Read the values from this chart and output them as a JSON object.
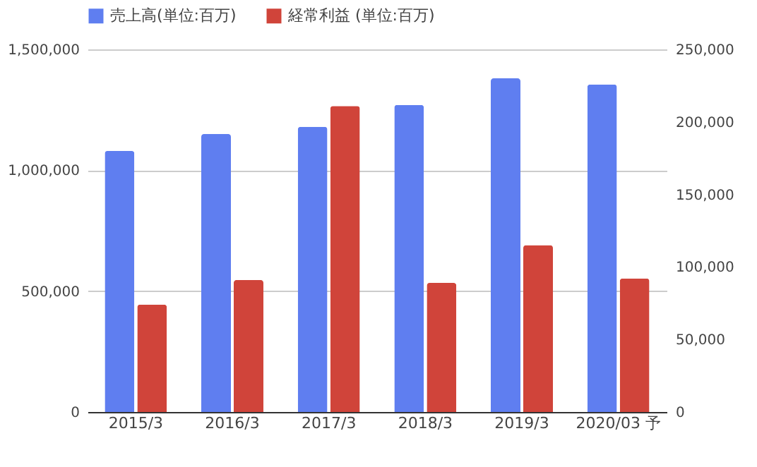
{
  "chart_data": {
    "type": "bar",
    "categories": [
      "2015/3",
      "2016/3",
      "2017/3",
      "2018/3",
      "2019/3",
      "2020/03 予"
    ],
    "series": [
      {
        "name": "売上高(単位:百万)",
        "color": "#5f7ef0",
        "values": [
          1080000,
          1150000,
          1180000,
          1270000,
          1380000,
          1355000
        ]
      },
      {
        "name": "経常利益 (単位:百万)",
        "color": "#d0443a",
        "axis": "y2",
        "values": [
          74000,
          91000,
          211000,
          89000,
          115000,
          92000
        ]
      }
    ],
    "ylim": [
      0,
      1500000
    ],
    "yticks": [
      0,
      {
        "value": 500000,
        "label": "500,000"
      },
      {
        "value": 1000000,
        "label": "1,000,000"
      },
      {
        "value": 1500000,
        "label": "1,500,000"
      }
    ],
    "y2lim": [
      0,
      250000
    ],
    "y2ticks": [
      0,
      {
        "value": 50000,
        "label": "50,000"
      },
      {
        "value": 100000,
        "label": "100,000"
      },
      {
        "value": 150000,
        "label": "150,000"
      },
      {
        "value": 200000,
        "label": "200,000"
      },
      {
        "value": 250000,
        "label": "250,000"
      }
    ],
    "grid": "y",
    "legend": "top"
  }
}
